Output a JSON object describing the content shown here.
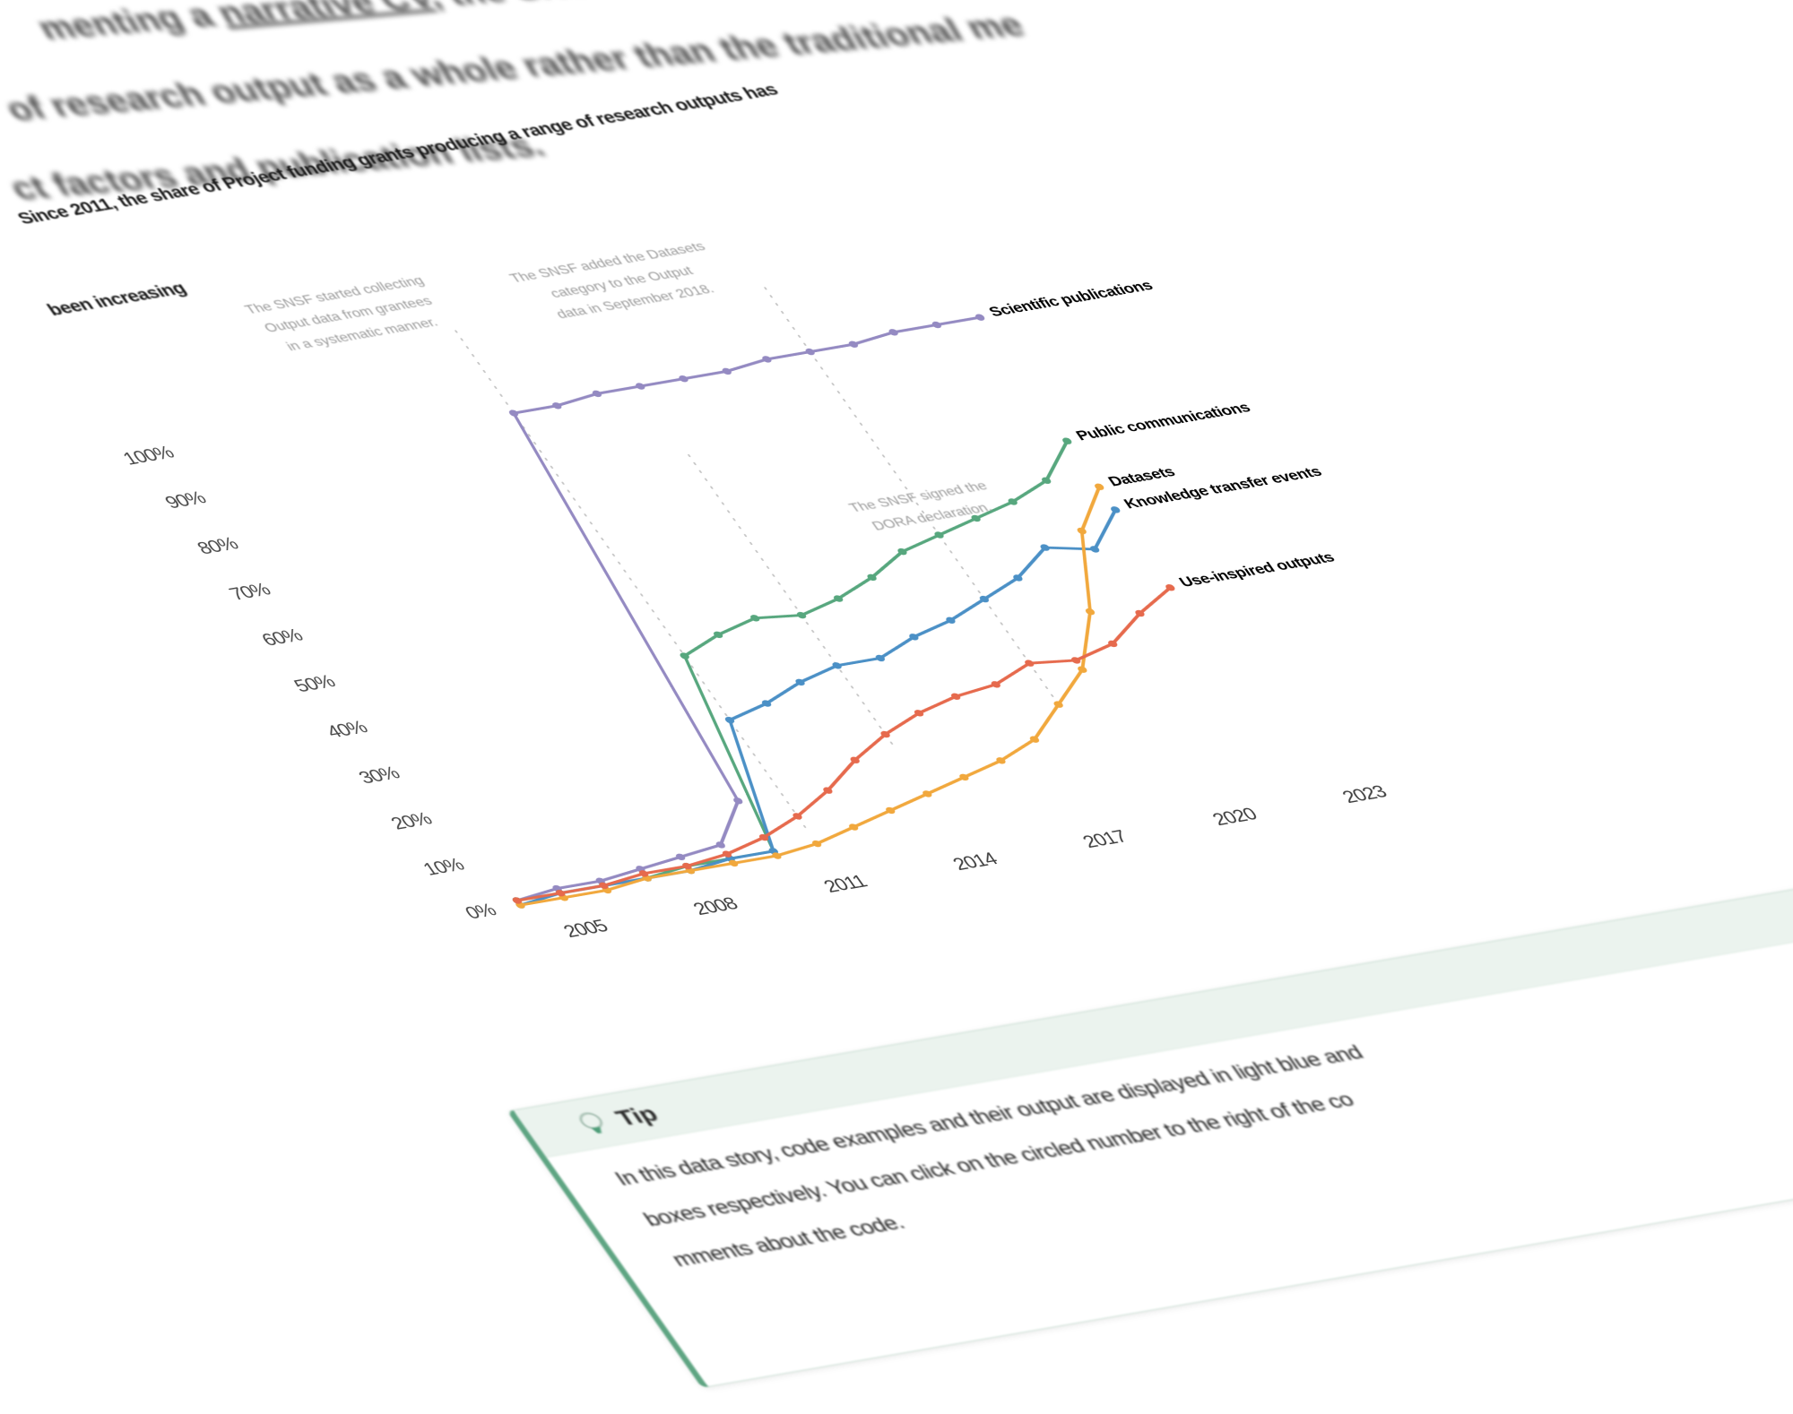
{
  "intro_paragraph": {
    "line1_pre": "menting a ",
    "line1_link": "narrative CV",
    "line1_post": ", the SNSF is",
    "line2": "of research output as a whole rather than the traditional me",
    "line3": "ct factors and publication lists."
  },
  "heading": {
    "line1": "Since 2011, the share of Project funding grants producing a range of research outputs has",
    "line2": "been increasing"
  },
  "chart_data": {
    "type": "line",
    "x": [
      2004,
      2005,
      2006,
      2007,
      2008,
      2009,
      2010,
      2011,
      2012,
      2013,
      2014,
      2015,
      2016,
      2017,
      2018,
      2019,
      2020,
      2021,
      2022
    ],
    "x_ticks": [
      "2005",
      "2008",
      "2011",
      "2014",
      "2017",
      "2020",
      "2023"
    ],
    "x_tick_years": [
      2005,
      2008,
      2011,
      2014,
      2017,
      2020,
      2023
    ],
    "y_ticks": [
      "0%",
      "10%",
      "20%",
      "30%",
      "40%",
      "50%",
      "60%",
      "70%",
      "80%",
      "90%",
      "100%"
    ],
    "ylim": [
      0,
      100
    ],
    "grid": false,
    "legend": "labels at line ends",
    "series": [
      {
        "name": "Scientific publications",
        "color": "#948ac2",
        "values": [
          1,
          2,
          2,
          3,
          4,
          5,
          13,
          96,
          96,
          97,
          97,
          97,
          97,
          98,
          98,
          98,
          99,
          99,
          99
        ]
      },
      {
        "name": "Public communications",
        "color": "#57a77e",
        "values": [
          1,
          1,
          1,
          1,
          2,
          2,
          2,
          43,
          46,
          48,
          47,
          49,
          52,
          56,
          58,
          60,
          62,
          65,
          72
        ]
      },
      {
        "name": "Knowledge transfer events",
        "color": "#4b90c6",
        "values": [
          0,
          1,
          1,
          1,
          1,
          2,
          2,
          29,
          31,
          34,
          36,
          36,
          39,
          41,
          44,
          47,
          52,
          50,
          57
        ]
      },
      {
        "name": "Datasets",
        "color": "#f1a83d",
        "values": [
          0,
          0,
          0,
          1,
          1,
          1,
          1,
          2,
          4,
          6,
          8,
          10,
          12,
          15,
          21,
          27,
          38,
          54,
          62
        ]
      },
      {
        "name": "Use-inspired outputs",
        "color": "#e66a4d",
        "values": [
          1,
          1,
          1,
          2,
          2,
          3,
          5,
          8,
          12,
          17,
          21,
          24,
          26,
          27,
          30,
          29,
          31,
          36,
          40
        ]
      }
    ],
    "annotations": [
      {
        "lines": [
          "The SNSF started collecting",
          "Output data from grantees",
          "in a systematic manner."
        ],
        "year": 2011,
        "leader_top_pct": 114,
        "leader_bottom_pct": 5
      },
      {
        "lines": [
          "The SNSF added the Datasets",
          "category to the Output",
          "data in September 2018."
        ],
        "year": 2018,
        "leader_top_pct": 112,
        "leader_bottom_pct": 21
      },
      {
        "lines": [
          "The SNSF signed the",
          "DORA declaration."
        ],
        "year": 2014,
        "leader_top_pct": 82,
        "leader_bottom_pct": 18
      }
    ]
  },
  "tip": {
    "title": "Tip",
    "icon": "lightbulb-icon",
    "accent_color": "#5fa583",
    "line1": "In this data story, code examples and their output are displayed in light blue and",
    "line2": "boxes respectively. You can click on the circled number to the right of the co",
    "line3": "mments about the code."
  }
}
